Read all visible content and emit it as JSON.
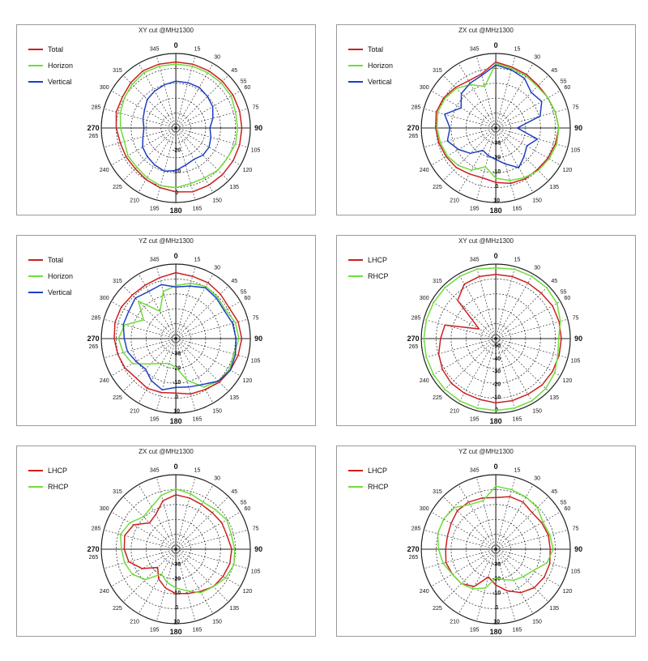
{
  "chart_data": [
    {
      "type": "polar",
      "title": "XY cut @MHz1300",
      "angle_ticks": [
        "0",
        "15",
        "30",
        "45",
        "55",
        "60",
        "75",
        "90",
        "105",
        "120",
        "135",
        "150",
        "165",
        "180",
        "195",
        "210",
        "225",
        "240",
        "265",
        "270",
        "285",
        "300",
        "315",
        "345"
      ],
      "radial_ticks": [
        "0",
        "-10",
        "-20"
      ],
      "rlim": [
        -30,
        5
      ],
      "grid": true,
      "legend_position": "top-left",
      "series": [
        {
          "name": "Total",
          "color": "#cc1f1f",
          "r": [
            1,
            1,
            1,
            1,
            1,
            1,
            1,
            1,
            1,
            1,
            1,
            1,
            0,
            -1,
            -2,
            -3,
            -3,
            -3,
            -2,
            -1,
            -1,
            0,
            1,
            1
          ]
        },
        {
          "name": "Horizon",
          "color": "#6fdc3a",
          "r": [
            0,
            0,
            0,
            0,
            0,
            -1,
            -1,
            -1,
            -2,
            -2,
            -3,
            -3,
            -2,
            -2,
            -3,
            -4,
            -4,
            -5,
            -4,
            -3,
            -2,
            -1,
            0,
            0
          ]
        },
        {
          "name": "Vertical",
          "color": "#1c3fc2",
          "r": [
            -8,
            -8,
            -8,
            -9,
            -10,
            -12,
            -14,
            -13,
            -12,
            -12,
            -13,
            -12,
            -10,
            -9,
            -10,
            -11,
            -12,
            -14,
            -15,
            -14,
            -13,
            -11,
            -10,
            -9
          ]
        }
      ]
    },
    {
      "type": "polar",
      "title": "ZX cut @MHz1300",
      "angle_ticks": [
        "0",
        "15",
        "30",
        "45",
        "55",
        "60",
        "75",
        "90",
        "105",
        "120",
        "135",
        "150",
        "165",
        "180",
        "195",
        "210",
        "225",
        "240",
        "265",
        "270",
        "285",
        "300",
        "315",
        "345"
      ],
      "radial_ticks": [
        "10",
        "0",
        "-10",
        "-20",
        "-30"
      ],
      "rlim": [
        -40,
        12
      ],
      "grid": true,
      "legend_position": "top-left",
      "series": [
        {
          "name": "Total",
          "color": "#cc1f1f",
          "r": [
            6,
            4,
            3,
            2,
            2,
            3,
            4,
            3,
            2,
            1,
            1,
            0,
            -2,
            -4,
            -3,
            -1,
            0,
            1,
            2,
            3,
            2,
            0,
            -2,
            -1
          ]
        },
        {
          "name": "Horizon",
          "color": "#6fdc3a",
          "r": [
            5,
            3,
            2,
            1,
            2,
            3,
            4,
            4,
            3,
            2,
            0,
            -2,
            -5,
            -12,
            -6,
            -3,
            -1,
            0,
            1,
            2,
            1,
            -1,
            -5,
            -10
          ]
        },
        {
          "name": "Vertical",
          "color": "#1c3fc2",
          "r": [
            4,
            2,
            0,
            -5,
            -3,
            -8,
            -25,
            -10,
            -15,
            -12,
            -8,
            -14,
            -18,
            -20,
            -22,
            -15,
            -10,
            -5,
            -8,
            -3,
            -12,
            -6,
            -4,
            -2
          ]
        }
      ]
    },
    {
      "type": "polar",
      "title": "YZ cut @MHz1300",
      "angle_ticks": [
        "0",
        "15",
        "30",
        "45",
        "55",
        "60",
        "75",
        "90",
        "105",
        "120",
        "135",
        "150",
        "165",
        "180",
        "195",
        "210",
        "225",
        "240",
        "265",
        "270",
        "285",
        "300",
        "315",
        "345"
      ],
      "radial_ticks": [
        "10",
        "0",
        "-10",
        "-20",
        "-30"
      ],
      "rlim": [
        -40,
        12
      ],
      "grid": true,
      "legend_position": "top-left",
      "series": [
        {
          "name": "Total",
          "color": "#cc1f1f",
          "r": [
            6,
            5,
            5,
            4,
            3,
            5,
            6,
            5,
            4,
            3,
            1,
            0,
            -2,
            -1,
            0,
            -1,
            1,
            2,
            3,
            4,
            4,
            3,
            3,
            4
          ]
        },
        {
          "name": "Horizon",
          "color": "#6fdc3a",
          "r": [
            -3,
            0,
            2,
            1,
            0,
            3,
            4,
            2,
            3,
            2,
            -1,
            -10,
            -20,
            -22,
            -20,
            -15,
            -5,
            -2,
            0,
            -3,
            -14,
            -3,
            -18,
            -6
          ]
        },
        {
          "name": "Vertical",
          "color": "#1c3fc2",
          "r": [
            -4,
            -2,
            1,
            0,
            -1,
            1,
            2,
            3,
            4,
            2,
            -3,
            -5,
            -6,
            -3,
            -6,
            -10,
            -8,
            -5,
            -4,
            -2,
            -2,
            0,
            -2,
            -1
          ]
        }
      ]
    },
    {
      "type": "polar",
      "title": "XY cut @MHz1300",
      "angle_ticks": [
        "0",
        "15",
        "30",
        "45",
        "55",
        "60",
        "75",
        "90",
        "105",
        "120",
        "135",
        "150",
        "165",
        "180",
        "195",
        "210",
        "225",
        "240",
        "265",
        "270",
        "285",
        "300",
        "315",
        "345"
      ],
      "radial_ticks": [
        "0",
        "-10",
        "-20",
        "-30",
        "-40",
        "-50"
      ],
      "rlim": [
        -55,
        3
      ],
      "grid": true,
      "legend_position": "top-left",
      "series": [
        {
          "name": "LHCP",
          "color": "#cc1f1f",
          "r": [
            -5,
            -5,
            -5,
            -5,
            -4,
            -4,
            -4,
            -4,
            -4,
            -4,
            -5,
            -5,
            -5,
            -6,
            -6,
            -6,
            -7,
            -9,
            -12,
            -14,
            -40,
            -13,
            -6,
            -5
          ]
        },
        {
          "name": "RHCP",
          "color": "#6fdc3a",
          "r": [
            0,
            1,
            1,
            1,
            0,
            -3,
            -6,
            -5,
            -2,
            0,
            1,
            1,
            1,
            1,
            1,
            1,
            1,
            1,
            1,
            1,
            1,
            1,
            1,
            1
          ]
        }
      ]
    },
    {
      "type": "polar",
      "title": "ZX cut @MHz1300",
      "angle_ticks": [
        "0",
        "15",
        "30",
        "45",
        "55",
        "60",
        "75",
        "90",
        "105",
        "120",
        "135",
        "150",
        "165",
        "180",
        "195",
        "210",
        "225",
        "240",
        "265",
        "270",
        "285",
        "300",
        "315",
        "345"
      ],
      "radial_ticks": [
        "10",
        "0",
        "-10",
        "-20",
        "-30"
      ],
      "rlim": [
        -40,
        12
      ],
      "grid": true,
      "legend_position": "top-left",
      "series": [
        {
          "name": "LHCP",
          "color": "#cc1f1f",
          "r": [
            -2,
            -3,
            -4,
            -4,
            -3,
            -3,
            -1,
            -1,
            -2,
            -3,
            -6,
            -8,
            -9,
            -12,
            -16,
            -22,
            -13,
            -6,
            -4,
            -3,
            -6,
            -14,
            -12,
            -5
          ]
        },
        {
          "name": "RHCP",
          "color": "#6fdc3a",
          "r": [
            2,
            0,
            -2,
            -1,
            1,
            0,
            1,
            2,
            0,
            -3,
            -5,
            -10,
            -13,
            -16,
            -20,
            -10,
            -5,
            -3,
            -2,
            0,
            -3,
            -8,
            -6,
            -1
          ]
        }
      ]
    },
    {
      "type": "polar",
      "title": "YZ cut @MHz1300",
      "angle_ticks": [
        "0",
        "15",
        "30",
        "45",
        "55",
        "60",
        "75",
        "90",
        "105",
        "120",
        "135",
        "150",
        "165",
        "180",
        "195",
        "210",
        "225",
        "240",
        "265",
        "270",
        "285",
        "300",
        "315",
        "345"
      ],
      "radial_ticks": [
        "10",
        "0",
        "-10",
        "-20",
        "-30"
      ],
      "rlim": [
        -40,
        12
      ],
      "grid": true,
      "legend_position": "top-left",
      "series": [
        {
          "name": "LHCP",
          "color": "#cc1f1f",
          "r": [
            -4,
            -2,
            -2,
            -4,
            -3,
            -2,
            -2,
            -1,
            -1,
            -2,
            -5,
            -10,
            -15,
            -20,
            -10,
            -6,
            -5,
            -4,
            -5,
            -5,
            -4,
            -2,
            -2,
            -3
          ]
        },
        {
          "name": "RHCP",
          "color": "#6fdc3a",
          "r": [
            4,
            3,
            2,
            1,
            -2,
            -1,
            0,
            -3,
            -10,
            -13,
            -15,
            -18,
            -20,
            -12,
            -8,
            -6,
            -5,
            -2,
            0,
            2,
            2,
            1,
            -4,
            -5
          ]
        }
      ]
    }
  ]
}
